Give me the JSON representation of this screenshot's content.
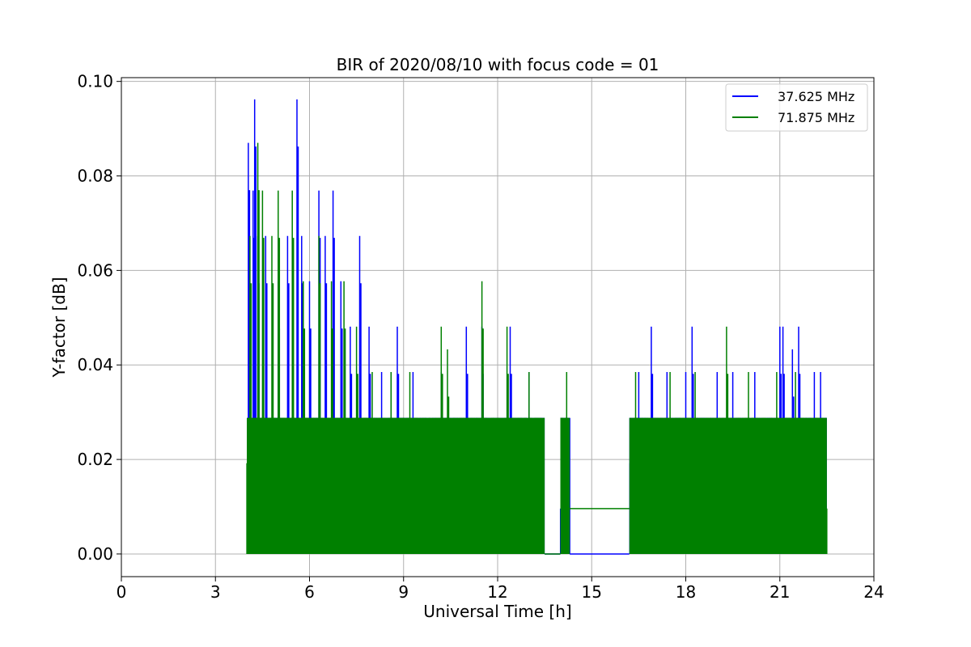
{
  "chart_data": {
    "type": "line",
    "title": "BIR of 2020/08/10 with focus code = 01",
    "xlabel": "Universal Time [h]",
    "ylabel": "Y-factor [dB]",
    "xlim": [
      0,
      24
    ],
    "ylim": [
      -0.0048,
      0.1008
    ],
    "xticks": [
      0,
      3,
      6,
      9,
      12,
      15,
      18,
      21,
      24
    ],
    "xtick_labels": [
      "0",
      "3",
      "6",
      "9",
      "12",
      "15",
      "18",
      "21",
      "24"
    ],
    "yticks": [
      0.0,
      0.02,
      0.04,
      0.06,
      0.08,
      0.1
    ],
    "ytick_labels": [
      "0.00",
      "0.02",
      "0.04",
      "0.06",
      "0.08",
      "0.10"
    ],
    "grid": true,
    "legend_position": "top-right",
    "series": [
      {
        "name": "37.625 MHz",
        "color": "#0000ff",
        "segments": [
          {
            "x_start": 4.0,
            "x_end": 13.5,
            "base": 0.0,
            "dense_top": 0.0288,
            "peaks": [
              [
                4.05,
                0.087
              ],
              [
                4.2,
                0.0769
              ],
              [
                4.25,
                0.0962
              ],
              [
                4.35,
                0.0673
              ],
              [
                4.6,
                0.0673
              ],
              [
                5.0,
                0.0577
              ],
              [
                5.3,
                0.0673
              ],
              [
                5.6,
                0.0962
              ],
              [
                5.75,
                0.0673
              ],
              [
                6.0,
                0.0577
              ],
              [
                6.3,
                0.0769
              ],
              [
                6.5,
                0.0673
              ],
              [
                6.75,
                0.0769
              ],
              [
                7.0,
                0.0577
              ],
              [
                7.3,
                0.0481
              ],
              [
                7.6,
                0.0673
              ],
              [
                7.9,
                0.0481
              ],
              [
                8.3,
                0.0385
              ],
              [
                8.6,
                0.0385
              ],
              [
                8.8,
                0.0481
              ],
              [
                9.3,
                0.0385
              ],
              [
                10.2,
                0.0385
              ],
              [
                11.0,
                0.0481
              ],
              [
                11.5,
                0.0481
              ],
              [
                12.4,
                0.0481
              ],
              [
                13.0,
                0.0385
              ]
            ]
          },
          {
            "x_start": 13.5,
            "x_end": 14.0,
            "base": 0.0,
            "dense_top": 0.0
          },
          {
            "x_start": 14.0,
            "x_end": 14.3,
            "base": 0.0,
            "dense_top": 0.0288
          },
          {
            "x_start": 14.3,
            "x_end": 16.2,
            "base": 0.0,
            "dense_top": 0.0
          },
          {
            "x_start": 16.2,
            "x_end": 22.5,
            "base": 0.0,
            "dense_top": 0.0288,
            "peaks": [
              [
                16.5,
                0.0385
              ],
              [
                16.9,
                0.0481
              ],
              [
                17.4,
                0.0385
              ],
              [
                18.0,
                0.0385
              ],
              [
                18.2,
                0.0481
              ],
              [
                19.0,
                0.0385
              ],
              [
                19.5,
                0.0385
              ],
              [
                20.2,
                0.0385
              ],
              [
                21.0,
                0.0481
              ],
              [
                21.1,
                0.0481
              ],
              [
                21.4,
                0.0433
              ],
              [
                21.6,
                0.0481
              ],
              [
                22.1,
                0.0385
              ],
              [
                22.3,
                0.0385
              ]
            ]
          }
        ]
      },
      {
        "name": "71.875 MHz",
        "color": "#008000",
        "segments": [
          {
            "x_start": 4.0,
            "x_end": 13.5,
            "base": 0.0,
            "dense_top": 0.0288,
            "peaks": [
              [
                4.1,
                0.0673
              ],
              [
                4.35,
                0.087
              ],
              [
                4.5,
                0.0769
              ],
              [
                4.8,
                0.0673
              ],
              [
                5.0,
                0.0769
              ],
              [
                5.45,
                0.0769
              ],
              [
                5.8,
                0.0577
              ],
              [
                6.3,
                0.0673
              ],
              [
                6.7,
                0.0577
              ],
              [
                7.1,
                0.0577
              ],
              [
                7.5,
                0.0481
              ],
              [
                8.0,
                0.0385
              ],
              [
                8.6,
                0.0385
              ],
              [
                9.2,
                0.0385
              ],
              [
                10.2,
                0.0481
              ],
              [
                10.4,
                0.0433
              ],
              [
                11.5,
                0.0577
              ],
              [
                12.3,
                0.0481
              ],
              [
                13.0,
                0.0385
              ]
            ]
          },
          {
            "x_start": 13.5,
            "x_end": 14.0,
            "base": 0.0,
            "dense_top": 0.0
          },
          {
            "x_start": 14.0,
            "x_end": 14.3,
            "base": 0.0,
            "dense_top": 0.0288,
            "peaks": [
              [
                14.2,
                0.0385
              ]
            ]
          },
          {
            "x_start": 14.3,
            "x_end": 16.2,
            "base": 0.0096,
            "dense_top": 0.0096
          },
          {
            "x_start": 16.2,
            "x_end": 22.5,
            "base": 0.0,
            "dense_top": 0.0288,
            "peaks": [
              [
                16.4,
                0.0385
              ],
              [
                17.5,
                0.0385
              ],
              [
                18.3,
                0.0385
              ],
              [
                19.3,
                0.0481
              ],
              [
                20.0,
                0.0385
              ],
              [
                20.9,
                0.0385
              ],
              [
                21.5,
                0.0385
              ]
            ]
          }
        ]
      }
    ]
  }
}
